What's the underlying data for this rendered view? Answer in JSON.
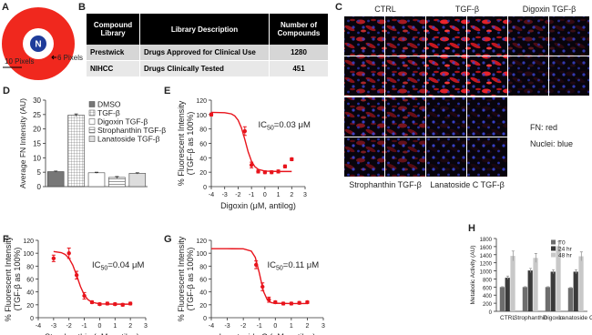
{
  "diagram": {
    "panel": "A",
    "nucleus": "N",
    "outer_label": "10 Pixels",
    "inner_label": "6 Pixels"
  },
  "table": {
    "panel": "B",
    "columns": [
      "Compound Library",
      "Library Description",
      "Number of Compounds"
    ],
    "rows": [
      [
        "Prestwick",
        "Drugs Approved for Clinical Use",
        1280
      ],
      [
        "NIHCC",
        "Drugs Clinically Tested",
        451
      ]
    ]
  },
  "images": {
    "panel": "C",
    "columns": [
      "CTRL",
      "TGF-β",
      "Digoxin TGF-β"
    ],
    "bottom_labels": [
      "Strophanthin TGF-β",
      "Lanatoside C TGF-β"
    ],
    "legend": [
      "FN: red",
      "Nuclei: blue"
    ]
  },
  "chart_data": [
    {
      "type": "bar",
      "panel": "D",
      "ylabel": "Average FN Intensity (AU)",
      "categories": [
        "DMSO",
        "TGF-β",
        "Digoxin TGF-β",
        "Strophanthin TGF-β",
        "Lanatoside TGF-β"
      ],
      "values": [
        5.2,
        24.8,
        4.8,
        3.2,
        4.6
      ],
      "errors": [
        0.2,
        0.4,
        0.2,
        0.3,
        0.2
      ],
      "colors": [
        "#777777",
        "#ffffff",
        "#ffffff",
        "#ffffff",
        "#dddddd"
      ],
      "patterns": [
        null,
        "grid",
        null,
        "hatch",
        null
      ],
      "ylim": [
        0,
        30
      ],
      "yticks": [
        0,
        5,
        10,
        15,
        20,
        25,
        30
      ]
    },
    {
      "type": "dose_response",
      "panel": "E",
      "xlabel": "Digoxin (μM, antilog)",
      "ylabel": [
        "% Fluorescent Intensity",
        "(TGF-β as 100%)"
      ],
      "annotation": {
        "main": "IC",
        "sub": "50",
        "rest": "=0.03 μM"
      },
      "color": "#e8141c",
      "points": {
        "x": [
          -4,
          -1.5,
          -1,
          -0.5,
          0,
          0.5,
          1,
          1.5,
          2
        ],
        "values": [
          100,
          77,
          30,
          21,
          20,
          20,
          21,
          28,
          38
        ],
        "errors": [
          2,
          6,
          4,
          2,
          2,
          2,
          2,
          2,
          2
        ]
      },
      "fit": {
        "x": [
          -4,
          -3,
          -2.5,
          -2.25,
          -2,
          -1.75,
          -1.5,
          -1.25,
          -1,
          -0.75,
          -0.5,
          0,
          1,
          2
        ],
        "values": [
          103,
          102.6,
          100.9,
          98.1,
          92.3,
          81.5,
          65.6,
          48.3,
          35.3,
          27.7,
          24,
          21.5,
          21,
          21
        ]
      },
      "xlim": [
        -4,
        3
      ],
      "xticks": [
        -4,
        -3,
        -2,
        -1,
        0,
        1,
        2,
        3
      ],
      "ylim": [
        0,
        120
      ],
      "yticks": [
        0,
        20,
        40,
        60,
        80,
        100,
        120
      ]
    },
    {
      "type": "dose_response",
      "panel": "F",
      "xlabel": "Strophanthin (μM, antilog)",
      "ylabel": [
        "% Fluorescent Intensity",
        "(TGF-β as 100%)"
      ],
      "annotation": {
        "main": "IC",
        "sub": "50",
        "rest": "=0.04 μM"
      },
      "color": "#e8141c",
      "points": {
        "x": [
          -3,
          -2,
          -1.5,
          -1,
          -0.5,
          0,
          0.5,
          1,
          1.5,
          2
        ],
        "values": [
          92,
          100,
          66,
          34,
          24,
          21,
          22,
          21,
          20,
          22
        ],
        "errors": [
          5,
          8,
          6,
          5,
          2,
          2,
          2,
          2,
          2,
          2
        ]
      },
      "fit": {
        "x": [
          -3,
          -2.5,
          -2.25,
          -2,
          -1.75,
          -1.5,
          -1.25,
          -1,
          -0.75,
          -0.5,
          0,
          1,
          2
        ],
        "values": [
          102.6,
          100.9,
          98.1,
          92.3,
          81.5,
          65.6,
          48.3,
          35.3,
          27.7,
          24,
          21.5,
          21,
          21
        ]
      },
      "xlim": [
        -4,
        3
      ],
      "xticks": [
        -4,
        -3,
        -2,
        -1,
        0,
        1,
        2,
        3
      ],
      "ylim": [
        0,
        120
      ],
      "yticks": [
        0,
        20,
        40,
        60,
        80,
        100,
        120
      ]
    },
    {
      "type": "dose_response",
      "panel": "G",
      "xlabel": "Lanatoside C (μM, antilog)",
      "ylabel": [
        "% Fluorescent Intensity",
        "(TGF-β as 100%)"
      ],
      "annotation": {
        "main": "IC",
        "sub": "50",
        "rest": "=0.11 μM"
      },
      "color": "#e8141c",
      "points": {
        "x": [
          -1.2,
          -0.8,
          -0.4,
          0,
          0.5,
          1,
          1.5,
          2
        ],
        "values": [
          82,
          48,
          28,
          24,
          22,
          22,
          23,
          24
        ],
        "errors": [
          6,
          6,
          4,
          2,
          2,
          2,
          2,
          2
        ]
      },
      "fit": {
        "x": [
          -4,
          -3,
          -2,
          -1.5,
          -1.25,
          -1,
          -0.75,
          -0.5,
          -0.25,
          0,
          1,
          2
        ],
        "values": [
          107,
          107,
          106.8,
          103.3,
          93.5,
          69.4,
          41.5,
          27.6,
          23.4,
          22.4,
          22,
          22
        ]
      },
      "xlim": [
        -4,
        3
      ],
      "xticks": [
        -4,
        -3,
        -2,
        -1,
        0,
        1,
        2,
        3
      ],
      "ylim": [
        0,
        120
      ],
      "yticks": [
        0,
        20,
        40,
        60,
        80,
        100,
        120
      ]
    },
    {
      "type": "grouped_bar",
      "panel": "H",
      "ylabel": "Metabolic Activity (AU)",
      "categories": [
        "CTRL",
        "Strophanthin",
        "Digoxin",
        "Lanatoside C"
      ],
      "series": [
        {
          "name": "T0",
          "color": "#6d6d6d",
          "values": [
            600,
            600,
            600,
            580
          ],
          "errors": [
            10,
            10,
            10,
            10
          ]
        },
        {
          "name": "24 hr",
          "color": "#3a3a3a",
          "values": [
            830,
            1010,
            980,
            980
          ],
          "errors": [
            40,
            50,
            50,
            50
          ]
        },
        {
          "name": "48 hr",
          "color": "#c8c8c8",
          "values": [
            1370,
            1320,
            1610,
            1360
          ],
          "errors": [
            120,
            110,
            120,
            110
          ]
        }
      ],
      "ylim": [
        0,
        1800
      ],
      "yticks": [
        0,
        200,
        400,
        600,
        800,
        1000,
        1200,
        1400,
        1600,
        1800
      ]
    }
  ]
}
